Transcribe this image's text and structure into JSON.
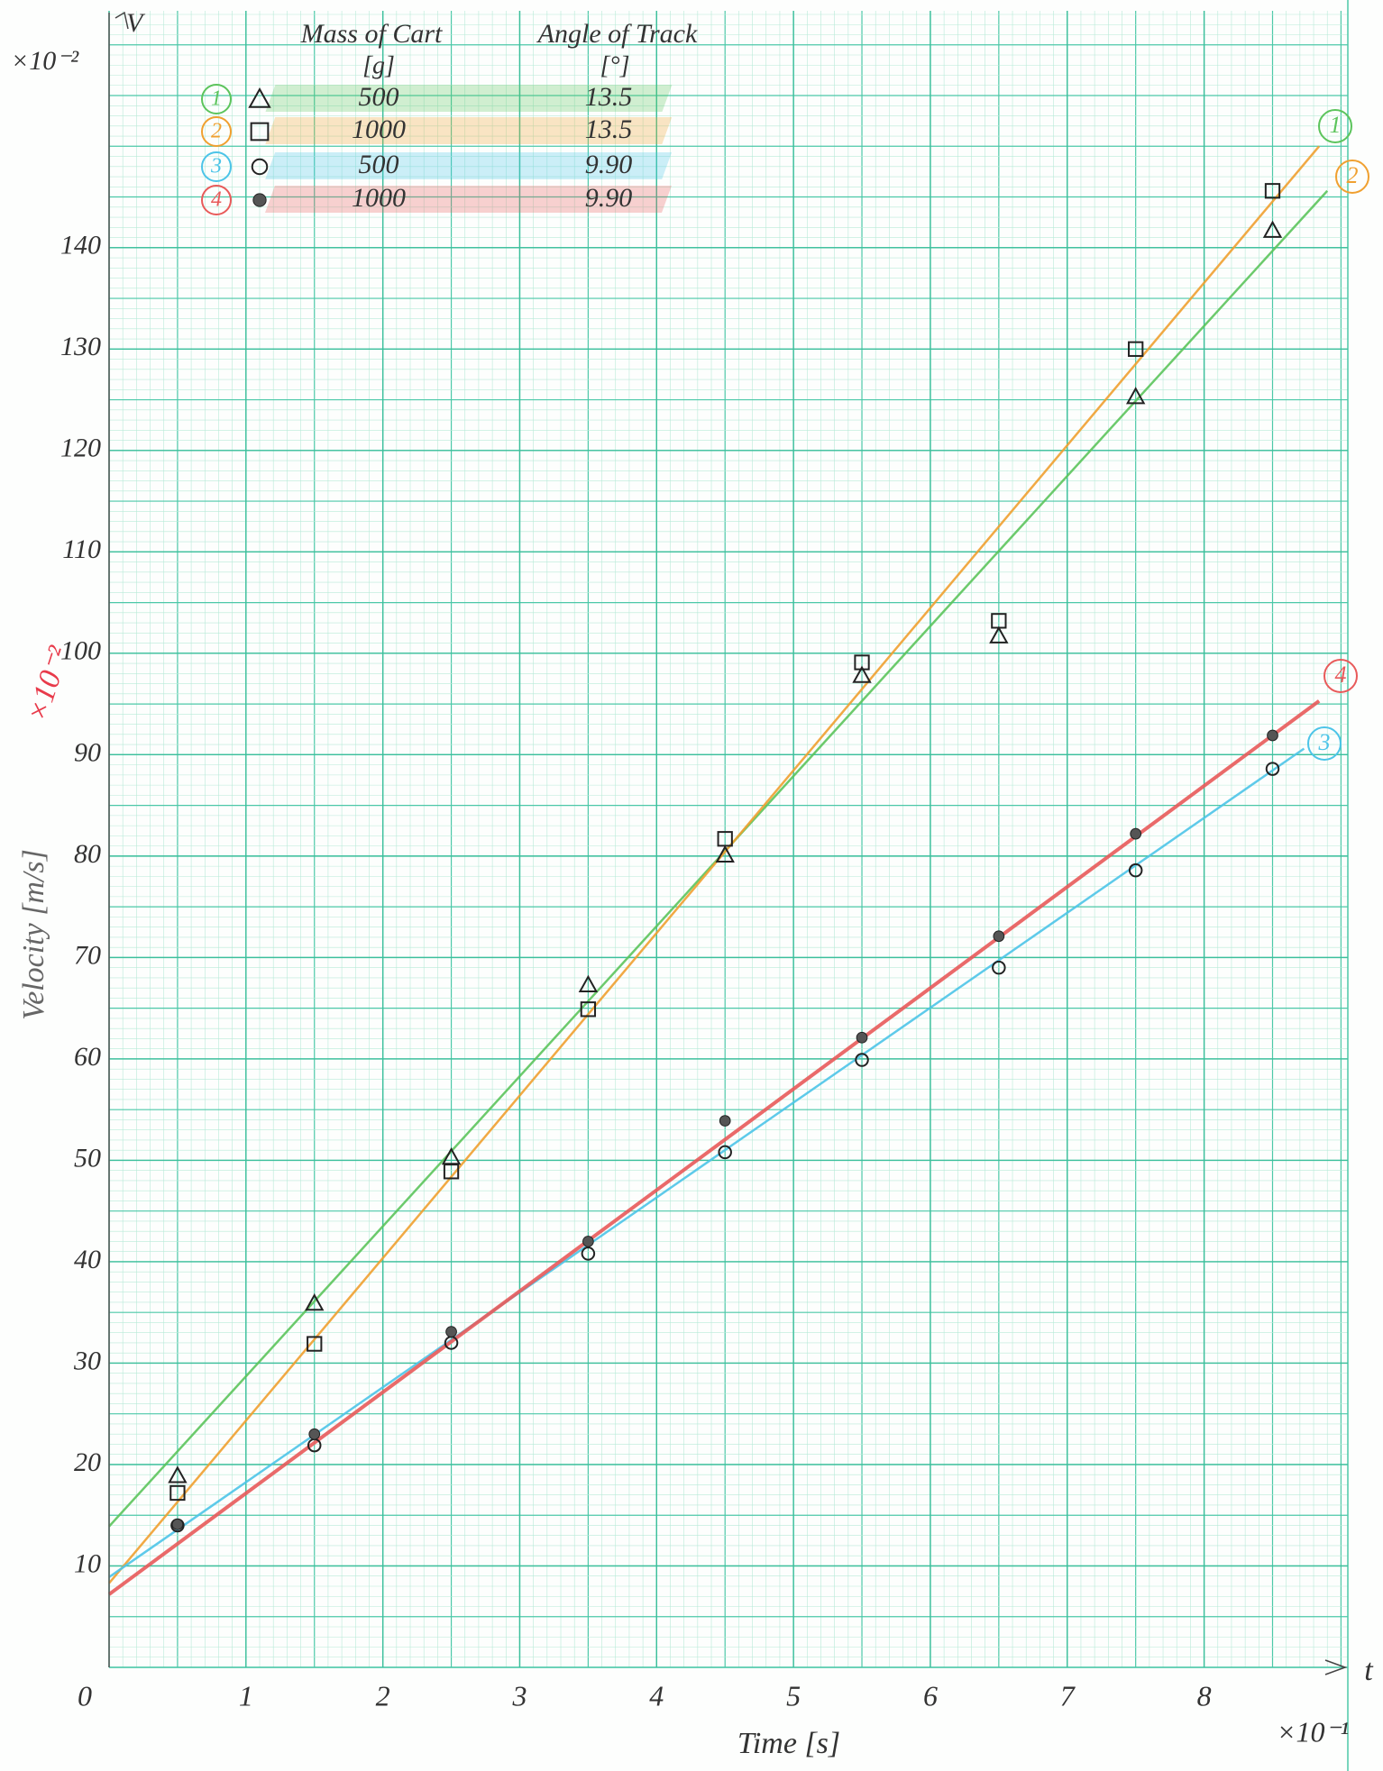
{
  "chart_data": {
    "type": "scatter",
    "y_unit_note": "×10⁻²",
    "y_axis_symbol": "V",
    "y_label": "Velocity [m/s]",
    "y_label_scale": "×10⁻²",
    "x_label": "Time [s]",
    "x_label_scale": "×10⁻¹",
    "x_axis_symbol": "t",
    "legend_headers": {
      "mass": "Mass of Cart",
      "mass_unit": "[g]",
      "angle": "Angle of Track",
      "angle_unit": "[°]"
    },
    "xlim": [
      0,
      9.05
    ],
    "ylim": [
      0,
      163
    ],
    "xticks": [
      0,
      1,
      2,
      3,
      4,
      5,
      6,
      7,
      8
    ],
    "yticks": [
      10,
      20,
      30,
      40,
      50,
      60,
      70,
      80,
      90,
      100,
      110,
      120,
      130,
      140
    ],
    "grid": true,
    "x": [
      0.5,
      1.5,
      2.5,
      3.5,
      4.5,
      5.5,
      6.5,
      7.5,
      8.5
    ],
    "series": [
      {
        "name": "1",
        "mass": "500",
        "angle": "13.5",
        "marker": "triangle",
        "color": "#5cc45c",
        "values": [
          18.9,
          35.9,
          50.3,
          67.3,
          80.1,
          97.8,
          101.7,
          125.3,
          141.7
        ],
        "fit": {
          "x": [
            0,
            8.9
          ],
          "y": [
            13.9,
            145.6
          ]
        }
      },
      {
        "name": "2",
        "mass": "1000",
        "angle": "13.5",
        "marker": "square",
        "color": "#f0a030",
        "values": [
          17.2,
          31.9,
          48.9,
          64.9,
          81.7,
          99.1,
          103.2,
          130,
          145.6
        ],
        "fit": {
          "x": [
            0,
            8.84
          ],
          "y": [
            8.3,
            150
          ]
        }
      },
      {
        "name": "3",
        "mass": "500",
        "angle": "9.90",
        "marker": "circle",
        "color": "#4cc4e8",
        "values": [
          14,
          21.9,
          32,
          40.8,
          50.8,
          59.9,
          69,
          78.6,
          88.6
        ],
        "fit": {
          "x": [
            0,
            8.73
          ],
          "y": [
            8.9,
            90.6
          ]
        }
      },
      {
        "name": "4",
        "mass": "1000",
        "angle": "9.90",
        "marker": "dot",
        "color": "#e85a5a",
        "values": [
          14.1,
          23,
          33.1,
          42,
          53.9,
          62.1,
          72.1,
          82.2,
          91.9
        ],
        "fit": {
          "x": [
            0,
            8.84
          ],
          "y": [
            7.2,
            95.3
          ]
        }
      }
    ]
  }
}
